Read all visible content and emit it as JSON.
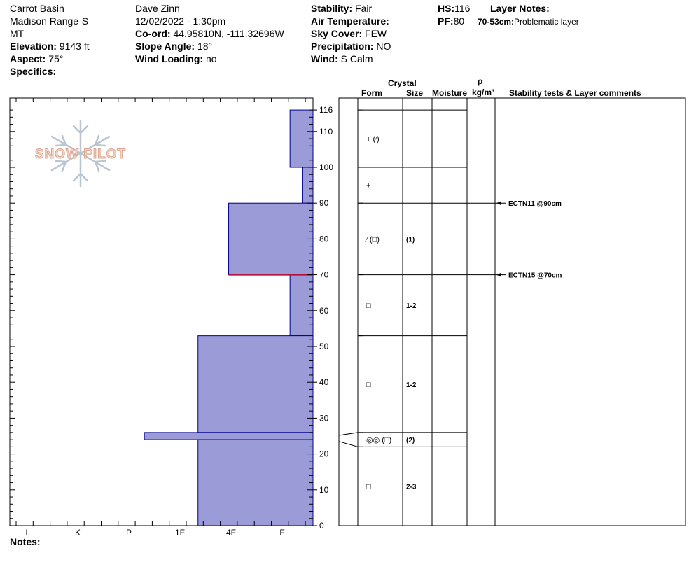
{
  "header": {
    "location": "Carrot Basin",
    "range": "Madison Range-S",
    "state": "MT",
    "elevation_label": "Elevation:",
    "elevation": "9143 ft",
    "aspect_label": "Aspect:",
    "aspect": "75°",
    "specifics_label": "Specifics:",
    "observer": "Dave Zinn",
    "datetime": "12/02/2022 - 1:30pm",
    "coord_label": "Co-ord:",
    "coord": "44.95810N, -111.32696W",
    "slope_label": "Slope Angle:",
    "slope": "18°",
    "wind_loading_label": "Wind Loading:",
    "wind_loading": "no",
    "stability_label": "Stability:",
    "stability": "Fair",
    "air_temp_label": "Air Temperature:",
    "sky_label": "Sky Cover:",
    "sky": "FEW",
    "precip_label": "Precipitation:",
    "precip": "NO",
    "wind_label": "Wind:",
    "wind": "S Calm",
    "hs_label": "HS:",
    "hs": "116",
    "pf_label": "PF:",
    "pf": "80",
    "layer_notes_label": "Layer Notes:",
    "layer_note_depth": "70-53cm:",
    "layer_note_text": "Problematic layer"
  },
  "columns": {
    "crystal": "Crystal",
    "form": "Form",
    "size": "Size",
    "moisture": "Moisture",
    "rho": "ρ",
    "density_unit": "kg/m³",
    "stability": "Stability tests & Layer comments"
  },
  "notes_label": "Notes:",
  "logo_text": "SNOW PILOT",
  "chart_data": {
    "type": "bar",
    "orientation": "horizontal",
    "y_axis": {
      "min": 0,
      "max": 116,
      "ticks": [
        0,
        10,
        20,
        30,
        40,
        50,
        60,
        70,
        80,
        90,
        100,
        110,
        116
      ]
    },
    "x_categories": [
      "I",
      "K",
      "P",
      "1F",
      "4F",
      "F"
    ],
    "layers": [
      {
        "top": 116,
        "bottom": 100,
        "hardness": "F+",
        "hardness_value": 0.45
      },
      {
        "top": 100,
        "bottom": 90,
        "hardness": "F",
        "hardness_value": 0.2
      },
      {
        "top": 90,
        "bottom": 70,
        "hardness": "4F",
        "hardness_value": 1.65
      },
      {
        "top": 70,
        "bottom": 53,
        "hardness": "F+",
        "hardness_value": 0.45
      },
      {
        "top": 53,
        "bottom": 26,
        "hardness": "1F+",
        "hardness_value": 2.25
      },
      {
        "top": 26,
        "bottom": 24,
        "hardness": "P-",
        "hardness_value": 3.3
      },
      {
        "top": 24,
        "bottom": 0,
        "hardness": "1F+",
        "hardness_value": 2.25
      }
    ],
    "crystal_rows": [
      {
        "top": 116,
        "bottom": 100,
        "form": "+ (⁄)",
        "size": ""
      },
      {
        "top": 100,
        "bottom": 90,
        "form": "+",
        "size": ""
      },
      {
        "top": 90,
        "bottom": 70,
        "form": "⁄ (□)",
        "size": "(1)"
      },
      {
        "top": 70,
        "bottom": 53,
        "form": "□",
        "size": "1-2"
      },
      {
        "top": 53,
        "bottom": 26,
        "form": "□",
        "size": "1-2"
      },
      {
        "top": 26,
        "bottom": 22,
        "form": "◎◎ (□)",
        "size": "(2)"
      },
      {
        "top": 22,
        "bottom": 0,
        "form": "□",
        "size": "2-3"
      }
    ],
    "stability_tests": [
      {
        "depth": 90,
        "label": "ECTN11 @90cm"
      },
      {
        "depth": 70,
        "label": "ECTN15 @70cm"
      }
    ]
  }
}
